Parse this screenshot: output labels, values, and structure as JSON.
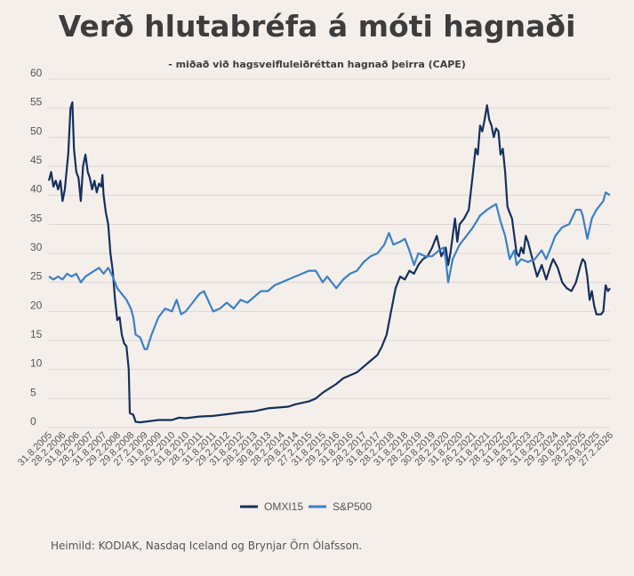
{
  "title": "Verð hlutabréfa á móti hagnaði",
  "subtitle": "- miðað við hagsveifluleiðréttan hagnað þeirra (CAPE)",
  "source": "Heimild: KODIAK, Nasdaq Iceland og Brynjar Örn Ólafsson.",
  "colors": {
    "OMXI15": "#15305e",
    "S&P500": "#3a80cc",
    "background": "#f5efeb",
    "grid": "#ddd6d2"
  },
  "chart_data": {
    "type": "line",
    "ylim": [
      0,
      60
    ],
    "yticks": [
      0,
      5,
      10,
      15,
      20,
      25,
      30,
      35,
      40,
      45,
      50,
      55,
      60
    ],
    "xlim": [
      "2005-08-31",
      "2026-02-27"
    ],
    "x_tick_labels": [
      "31.8.2005",
      "28.2.2006",
      "31.8.2006",
      "28.2.2007",
      "31.8.2007",
      "29.2.2008",
      "29.8.2008",
      "27.2.2009",
      "31.8.2009",
      "26.2.2010",
      "31.8.2010",
      "28.2.2011",
      "31.8.2011",
      "29.2.2012",
      "31.8.2012",
      "28.2.2013",
      "30.8.2013",
      "28.2.2014",
      "29.8.2014",
      "27.2.2015",
      "31.8.2015",
      "29.2.2016",
      "31.8.2016",
      "28.2.2017",
      "31.8.2017",
      "28.2.2018",
      "31.8.2018",
      "28.2.2019",
      "30.8.2019",
      "28.2.2020",
      "31.8.2020",
      "26.2.2021",
      "31.8.2021",
      "28.2.2022",
      "31.8.2022",
      "28.2.2023",
      "31.8.2023",
      "29.2.2024",
      "30.8.2024",
      "28.2.2025",
      "29.8.2025",
      "27.2.2026"
    ],
    "legend": [
      "OMXI15",
      "S&P500"
    ],
    "legend_position": "bottom",
    "series": [
      {
        "name": "OMXI15",
        "points": [
          [
            "2005-08-31",
            42.5
          ],
          [
            "2005-09-30",
            44
          ],
          [
            "2005-10-31",
            41.5
          ],
          [
            "2005-11-30",
            42.5
          ],
          [
            "2005-12-31",
            41
          ],
          [
            "2006-01-31",
            42.5
          ],
          [
            "2006-02-28",
            39
          ],
          [
            "2006-03-31",
            41
          ],
          [
            "2006-04-30",
            45
          ],
          [
            "2006-05-15",
            47
          ],
          [
            "2006-06-15",
            55
          ],
          [
            "2006-07-10",
            56
          ],
          [
            "2006-07-31",
            48
          ],
          [
            "2006-08-31",
            44
          ],
          [
            "2006-09-30",
            43
          ],
          [
            "2006-10-31",
            39
          ],
          [
            "2006-11-30",
            45
          ],
          [
            "2006-12-31",
            47
          ],
          [
            "2007-01-31",
            44
          ],
          [
            "2007-02-28",
            43
          ],
          [
            "2007-03-31",
            41
          ],
          [
            "2007-04-30",
            42.5
          ],
          [
            "2007-05-31",
            40.5
          ],
          [
            "2007-06-30",
            42
          ],
          [
            "2007-07-31",
            41.5
          ],
          [
            "2007-08-15",
            43.5
          ],
          [
            "2007-08-31",
            40
          ],
          [
            "2007-09-30",
            37
          ],
          [
            "2007-10-31",
            35
          ],
          [
            "2007-11-30",
            30
          ],
          [
            "2007-12-31",
            27
          ],
          [
            "2008-01-31",
            22
          ],
          [
            "2008-02-29",
            18.5
          ],
          [
            "2008-03-31",
            19
          ],
          [
            "2008-04-30",
            16
          ],
          [
            "2008-05-31",
            14.5
          ],
          [
            "2008-06-30",
            14
          ],
          [
            "2008-07-31",
            10
          ],
          [
            "2008-08-15",
            2.5
          ],
          [
            "2008-09-30",
            2.2
          ],
          [
            "2008-10-31",
            1
          ],
          [
            "2008-12-31",
            0.9
          ],
          [
            "2009-02-27",
            1
          ],
          [
            "2009-06-30",
            1.2
          ],
          [
            "2009-08-31",
            1.3
          ],
          [
            "2010-02-26",
            1.3
          ],
          [
            "2010-05-31",
            1.7
          ],
          [
            "2010-08-31",
            1.6
          ],
          [
            "2011-02-28",
            1.9
          ],
          [
            "2011-08-31",
            2
          ],
          [
            "2012-02-29",
            2.3
          ],
          [
            "2012-08-31",
            2.6
          ],
          [
            "2013-02-28",
            2.8
          ],
          [
            "2013-08-30",
            3.3
          ],
          [
            "2014-02-28",
            3.5
          ],
          [
            "2014-05-31",
            3.6
          ],
          [
            "2014-08-29",
            4
          ],
          [
            "2015-02-27",
            4.5
          ],
          [
            "2015-05-31",
            5
          ],
          [
            "2015-08-31",
            6
          ],
          [
            "2016-02-29",
            7.5
          ],
          [
            "2016-05-31",
            8.5
          ],
          [
            "2016-08-31",
            9
          ],
          [
            "2016-11-30",
            9.5
          ],
          [
            "2017-02-28",
            10.5
          ],
          [
            "2017-05-31",
            11.5
          ],
          [
            "2017-08-31",
            12.5
          ],
          [
            "2017-10-31",
            14
          ],
          [
            "2017-12-31",
            16
          ],
          [
            "2018-02-28",
            20
          ],
          [
            "2018-04-30",
            24
          ],
          [
            "2018-06-30",
            26
          ],
          [
            "2018-08-31",
            25.5
          ],
          [
            "2018-10-31",
            27
          ],
          [
            "2018-12-31",
            26.5
          ],
          [
            "2019-02-28",
            28
          ],
          [
            "2019-04-30",
            29
          ],
          [
            "2019-06-30",
            29.5
          ],
          [
            "2019-08-30",
            31
          ],
          [
            "2019-10-31",
            33
          ],
          [
            "2019-12-31",
            29.5
          ],
          [
            "2020-02-28",
            31
          ],
          [
            "2020-03-31",
            28
          ],
          [
            "2020-04-30",
            30
          ],
          [
            "2020-06-30",
            36
          ],
          [
            "2020-07-31",
            32
          ],
          [
            "2020-08-31",
            35
          ],
          [
            "2020-10-31",
            36
          ],
          [
            "2020-12-31",
            37.5
          ],
          [
            "2021-02-26",
            44
          ],
          [
            "2021-03-31",
            48
          ],
          [
            "2021-04-30",
            47
          ],
          [
            "2021-05-31",
            52
          ],
          [
            "2021-06-30",
            51
          ],
          [
            "2021-07-31",
            53
          ],
          [
            "2021-08-31",
            55.5
          ],
          [
            "2021-09-30",
            53
          ],
          [
            "2021-10-31",
            52
          ],
          [
            "2021-11-30",
            50
          ],
          [
            "2021-12-31",
            51.5
          ],
          [
            "2022-01-31",
            51
          ],
          [
            "2022-02-28",
            47
          ],
          [
            "2022-03-31",
            48
          ],
          [
            "2022-04-30",
            44
          ],
          [
            "2022-05-31",
            38
          ],
          [
            "2022-06-30",
            37
          ],
          [
            "2022-07-31",
            36
          ],
          [
            "2022-08-31",
            33
          ],
          [
            "2022-09-30",
            30
          ],
          [
            "2022-10-31",
            29.5
          ],
          [
            "2022-11-30",
            31
          ],
          [
            "2022-12-31",
            30
          ],
          [
            "2023-01-31",
            33
          ],
          [
            "2023-02-28",
            32
          ],
          [
            "2023-04-30",
            29
          ],
          [
            "2023-06-30",
            26
          ],
          [
            "2023-08-31",
            28
          ],
          [
            "2023-10-31",
            25.5
          ],
          [
            "2023-12-31",
            28
          ],
          [
            "2024-01-31",
            29
          ],
          [
            "2024-03-31",
            27.5
          ],
          [
            "2024-05-31",
            25
          ],
          [
            "2024-07-31",
            24
          ],
          [
            "2024-09-30",
            23.5
          ],
          [
            "2024-11-30",
            25
          ],
          [
            "2025-01-31",
            28
          ],
          [
            "2025-02-28",
            29
          ],
          [
            "2025-03-31",
            28.5
          ],
          [
            "2025-04-30",
            26
          ],
          [
            "2025-05-31",
            22
          ],
          [
            "2025-06-30",
            23.5
          ],
          [
            "2025-07-31",
            21
          ],
          [
            "2025-08-29",
            19.5
          ],
          [
            "2025-10-31",
            19.5
          ],
          [
            "2025-11-30",
            20
          ],
          [
            "2025-12-31",
            24.5
          ],
          [
            "2026-01-31",
            23.5
          ],
          [
            "2026-02-27",
            24
          ]
        ]
      },
      {
        "name": "S&P500",
        "points": [
          [
            "2005-08-31",
            26
          ],
          [
            "2005-10-31",
            25.5
          ],
          [
            "2005-12-31",
            26
          ],
          [
            "2006-02-28",
            25.5
          ],
          [
            "2006-04-30",
            26.5
          ],
          [
            "2006-06-30",
            26
          ],
          [
            "2006-08-31",
            26.5
          ],
          [
            "2006-10-31",
            25
          ],
          [
            "2006-12-31",
            26
          ],
          [
            "2007-02-28",
            26.5
          ],
          [
            "2007-04-30",
            27
          ],
          [
            "2007-06-30",
            27.5
          ],
          [
            "2007-08-31",
            26.5
          ],
          [
            "2007-10-31",
            27.5
          ],
          [
            "2007-12-31",
            26
          ],
          [
            "2008-02-29",
            24
          ],
          [
            "2008-04-30",
            23
          ],
          [
            "2008-06-30",
            22
          ],
          [
            "2008-08-29",
            20.5
          ],
          [
            "2008-09-30",
            19
          ],
          [
            "2008-10-31",
            16
          ],
          [
            "2008-12-31",
            15.5
          ],
          [
            "2009-02-27",
            13.5
          ],
          [
            "2009-03-31",
            13.5
          ],
          [
            "2009-05-31",
            16
          ],
          [
            "2009-08-31",
            19
          ],
          [
            "2009-11-30",
            20.5
          ],
          [
            "2010-02-26",
            20
          ],
          [
            "2010-04-30",
            22
          ],
          [
            "2010-06-30",
            19.5
          ],
          [
            "2010-08-31",
            20
          ],
          [
            "2010-11-30",
            21.5
          ],
          [
            "2011-02-28",
            23
          ],
          [
            "2011-04-30",
            23.5
          ],
          [
            "2011-08-31",
            20
          ],
          [
            "2011-11-30",
            20.5
          ],
          [
            "2012-02-29",
            21.5
          ],
          [
            "2012-05-31",
            20.5
          ],
          [
            "2012-08-31",
            22
          ],
          [
            "2012-11-30",
            21.5
          ],
          [
            "2013-02-28",
            22.5
          ],
          [
            "2013-05-31",
            23.5
          ],
          [
            "2013-08-30",
            23.5
          ],
          [
            "2013-11-30",
            24.5
          ],
          [
            "2014-02-28",
            25
          ],
          [
            "2014-05-31",
            25.5
          ],
          [
            "2014-08-29",
            26
          ],
          [
            "2014-11-30",
            26.5
          ],
          [
            "2015-02-27",
            27
          ],
          [
            "2015-05-31",
            27
          ],
          [
            "2015-08-31",
            25
          ],
          [
            "2015-10-31",
            26
          ],
          [
            "2016-02-29",
            24
          ],
          [
            "2016-05-31",
            25.5
          ],
          [
            "2016-08-31",
            26.5
          ],
          [
            "2016-11-30",
            27
          ],
          [
            "2017-02-28",
            28.5
          ],
          [
            "2017-05-31",
            29.5
          ],
          [
            "2017-08-31",
            30
          ],
          [
            "2017-11-30",
            31.5
          ],
          [
            "2018-01-31",
            33.5
          ],
          [
            "2018-03-31",
            31.5
          ],
          [
            "2018-06-30",
            32
          ],
          [
            "2018-08-31",
            32.5
          ],
          [
            "2018-10-31",
            30.5
          ],
          [
            "2018-12-31",
            28
          ],
          [
            "2019-02-28",
            30
          ],
          [
            "2019-05-31",
            29.5
          ],
          [
            "2019-08-30",
            29.5
          ],
          [
            "2019-11-30",
            30.5
          ],
          [
            "2020-01-31",
            31
          ],
          [
            "2020-02-28",
            29
          ],
          [
            "2020-03-31",
            25
          ],
          [
            "2020-05-31",
            29
          ],
          [
            "2020-08-31",
            31.5
          ],
          [
            "2020-11-30",
            33
          ],
          [
            "2021-02-26",
            34.5
          ],
          [
            "2021-05-31",
            36.5
          ],
          [
            "2021-08-31",
            37.5
          ],
          [
            "2021-10-31",
            38
          ],
          [
            "2021-12-31",
            38.5
          ],
          [
            "2022-02-28",
            35.5
          ],
          [
            "2022-04-30",
            33
          ],
          [
            "2022-06-30",
            29
          ],
          [
            "2022-08-31",
            30.5
          ],
          [
            "2022-09-30",
            28
          ],
          [
            "2022-11-30",
            29
          ],
          [
            "2023-02-28",
            28.5
          ],
          [
            "2023-05-31",
            29
          ],
          [
            "2023-08-31",
            30.5
          ],
          [
            "2023-10-31",
            29
          ],
          [
            "2023-12-31",
            31
          ],
          [
            "2024-02-29",
            33
          ],
          [
            "2024-05-31",
            34.5
          ],
          [
            "2024-08-30",
            35
          ],
          [
            "2024-11-30",
            37.5
          ],
          [
            "2025-01-31",
            37.5
          ],
          [
            "2025-02-28",
            36.5
          ],
          [
            "2025-04-30",
            32.5
          ],
          [
            "2025-06-30",
            36
          ],
          [
            "2025-08-29",
            37.5
          ],
          [
            "2025-11-30",
            39
          ],
          [
            "2025-12-31",
            40.5
          ],
          [
            "2026-02-27",
            40
          ]
        ]
      }
    ]
  }
}
